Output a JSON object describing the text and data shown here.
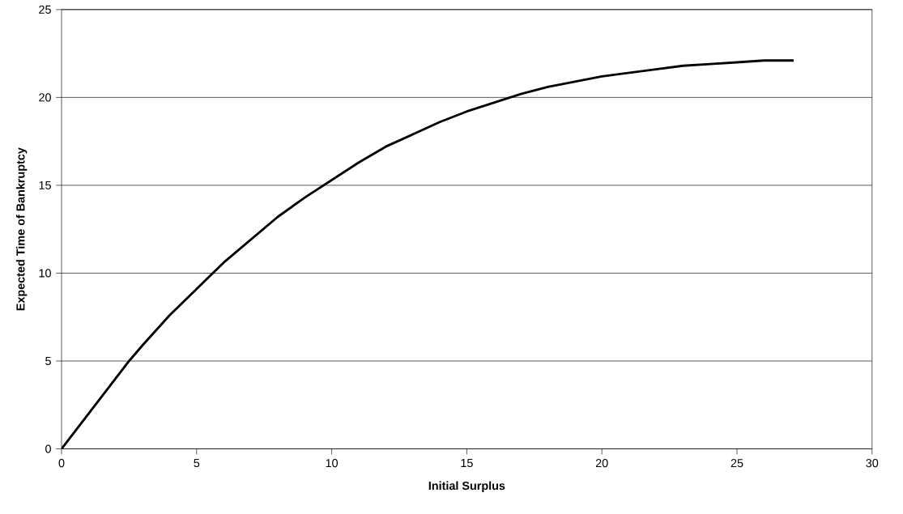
{
  "chart_data": {
    "type": "line",
    "xlabel": "Initial Surplus",
    "ylabel": "Expected Time of Bankruptcy",
    "x": [
      0,
      1,
      2,
      2.5,
      3,
      4,
      5,
      6,
      7,
      8,
      9,
      10,
      11,
      12,
      13,
      14,
      15,
      16,
      17,
      18,
      19,
      20,
      21,
      22,
      23,
      24,
      25,
      26,
      27.1
    ],
    "series": [
      {
        "color": "#000000",
        "values": [
          0,
          2.0,
          4.0,
          5.0,
          5.9,
          7.6,
          9.1,
          10.6,
          11.9,
          13.2,
          14.3,
          15.3,
          16.3,
          17.2,
          17.9,
          18.6,
          19.2,
          19.7,
          20.2,
          20.6,
          20.9,
          21.2,
          21.4,
          21.6,
          21.8,
          21.9,
          22.0,
          22.1,
          22.1
        ]
      }
    ],
    "xlim": [
      0,
      30
    ],
    "xticks": [
      0,
      5,
      10,
      15,
      20,
      25,
      30
    ],
    "ylim": [
      0,
      25
    ],
    "yticks": [
      0,
      5,
      10,
      15,
      20,
      25
    ],
    "grid": "y",
    "marker": "none",
    "line_style": "solid"
  }
}
